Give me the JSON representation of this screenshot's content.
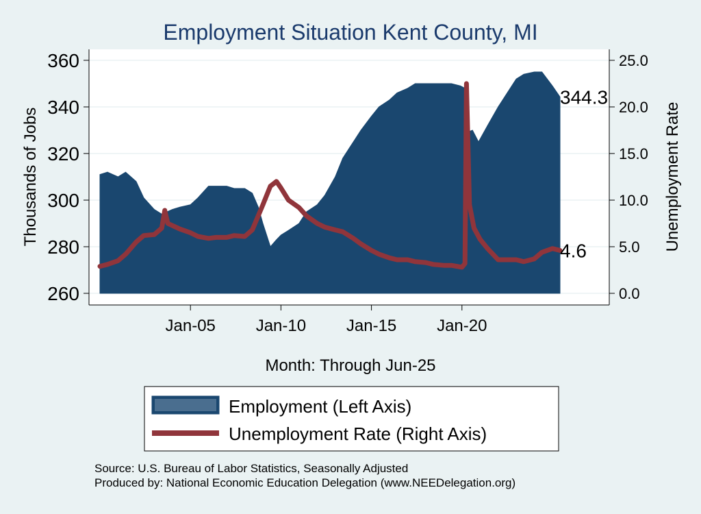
{
  "chart_data": {
    "type": "area+line",
    "title": "Employment Situation Kent  County, MI",
    "xlabel": "Month: Through Jun-25",
    "ylabel_left": "Thousands of Jobs",
    "ylabel_right": "Unemployment Rate",
    "x_range": [
      "2000-01",
      "2025-06"
    ],
    "x_ticks": [
      "Jan-05",
      "Jan-10",
      "Jan-15",
      "Jan-20"
    ],
    "y_left": {
      "min": 260,
      "max": 360,
      "ticks": [
        "260",
        "280",
        "300",
        "320",
        "340",
        "360"
      ]
    },
    "y_right": {
      "min": 0,
      "max": 25,
      "ticks": [
        "0.0",
        "5.0",
        "10.0",
        "15.0",
        "20.0",
        "25.0"
      ]
    },
    "grid": true,
    "legend_position": "bottom",
    "colors": {
      "employment": "#1a476f",
      "unemployment": "#90353b",
      "background": "#eaf2f3",
      "plot_bg": "#ffffff"
    },
    "series": [
      {
        "name": "Employment (Left Axis)",
        "axis": "left",
        "type": "area",
        "points": [
          [
            "2000-01",
            311
          ],
          [
            "2000-06",
            312
          ],
          [
            "2001-01",
            310
          ],
          [
            "2001-06",
            312
          ],
          [
            "2002-01",
            308
          ],
          [
            "2002-06",
            301
          ],
          [
            "2003-01",
            296
          ],
          [
            "2003-06",
            294
          ],
          [
            "2004-01",
            296
          ],
          [
            "2004-06",
            297
          ],
          [
            "2005-01",
            298
          ],
          [
            "2005-06",
            301
          ],
          [
            "2006-01",
            306
          ],
          [
            "2006-06",
            306
          ],
          [
            "2007-01",
            306
          ],
          [
            "2007-06",
            305
          ],
          [
            "2008-01",
            305
          ],
          [
            "2008-06",
            303
          ],
          [
            "2008-10",
            297
          ],
          [
            "2009-01",
            290
          ],
          [
            "2009-06",
            280
          ],
          [
            "2009-10",
            283
          ],
          [
            "2010-01",
            285
          ],
          [
            "2010-06",
            287
          ],
          [
            "2011-01",
            290
          ],
          [
            "2011-06",
            295
          ],
          [
            "2012-01",
            298
          ],
          [
            "2012-06",
            302
          ],
          [
            "2013-01",
            310
          ],
          [
            "2013-06",
            318
          ],
          [
            "2014-01",
            325
          ],
          [
            "2014-06",
            330
          ],
          [
            "2015-01",
            336
          ],
          [
            "2015-06",
            340
          ],
          [
            "2016-01",
            343
          ],
          [
            "2016-06",
            346
          ],
          [
            "2017-01",
            348
          ],
          [
            "2017-06",
            350
          ],
          [
            "2018-01",
            350
          ],
          [
            "2018-06",
            350
          ],
          [
            "2019-01",
            350
          ],
          [
            "2019-06",
            350
          ],
          [
            "2019-12",
            349
          ],
          [
            "2020-03",
            348
          ],
          [
            "2020-04",
            329
          ],
          [
            "2020-08",
            330
          ],
          [
            "2020-12",
            325
          ],
          [
            "2021-06",
            332
          ],
          [
            "2022-01",
            340
          ],
          [
            "2022-06",
            345
          ],
          [
            "2023-01",
            352
          ],
          [
            "2023-06",
            354
          ],
          [
            "2024-01",
            355
          ],
          [
            "2024-06",
            355
          ],
          [
            "2025-01",
            349
          ],
          [
            "2025-06",
            344.3
          ]
        ]
      },
      {
        "name": "Unemployment Rate (Right Axis)",
        "axis": "right",
        "type": "line",
        "points": [
          [
            "2000-01",
            2.9
          ],
          [
            "2000-06",
            3.1
          ],
          [
            "2001-01",
            3.5
          ],
          [
            "2001-06",
            4.2
          ],
          [
            "2002-01",
            5.5
          ],
          [
            "2002-06",
            6.2
          ],
          [
            "2003-01",
            6.3
          ],
          [
            "2003-06",
            7.0
          ],
          [
            "2003-08",
            8.9
          ],
          [
            "2003-10",
            7.5
          ],
          [
            "2004-06",
            6.9
          ],
          [
            "2005-01",
            6.5
          ],
          [
            "2005-06",
            6.1
          ],
          [
            "2006-01",
            5.9
          ],
          [
            "2006-06",
            6.0
          ],
          [
            "2007-01",
            6.0
          ],
          [
            "2007-06",
            6.2
          ],
          [
            "2008-01",
            6.1
          ],
          [
            "2008-06",
            6.8
          ],
          [
            "2009-01",
            9.5
          ],
          [
            "2009-06",
            11.5
          ],
          [
            "2009-10",
            12.0
          ],
          [
            "2010-01",
            11.3
          ],
          [
            "2010-06",
            10.0
          ],
          [
            "2011-01",
            9.2
          ],
          [
            "2011-06",
            8.3
          ],
          [
            "2012-01",
            7.5
          ],
          [
            "2012-06",
            7.1
          ],
          [
            "2013-01",
            6.8
          ],
          [
            "2013-06",
            6.6
          ],
          [
            "2014-01",
            5.9
          ],
          [
            "2014-06",
            5.3
          ],
          [
            "2015-01",
            4.6
          ],
          [
            "2015-06",
            4.2
          ],
          [
            "2016-01",
            3.8
          ],
          [
            "2016-06",
            3.6
          ],
          [
            "2017-01",
            3.6
          ],
          [
            "2017-06",
            3.4
          ],
          [
            "2018-01",
            3.3
          ],
          [
            "2018-06",
            3.1
          ],
          [
            "2019-01",
            3.0
          ],
          [
            "2019-06",
            3.0
          ],
          [
            "2020-01",
            2.8
          ],
          [
            "2020-03",
            3.2
          ],
          [
            "2020-04",
            22.5
          ],
          [
            "2020-06",
            9.5
          ],
          [
            "2020-09",
            7.0
          ],
          [
            "2021-01",
            5.8
          ],
          [
            "2021-06",
            4.8
          ],
          [
            "2022-01",
            3.6
          ],
          [
            "2022-06",
            3.6
          ],
          [
            "2023-01",
            3.6
          ],
          [
            "2023-06",
            3.4
          ],
          [
            "2024-01",
            3.7
          ],
          [
            "2024-06",
            4.4
          ],
          [
            "2025-01",
            4.8
          ],
          [
            "2025-06",
            4.6
          ]
        ]
      }
    ],
    "end_labels": {
      "employment": "344.3",
      "unemployment": "4.6"
    }
  },
  "legend": {
    "employment_label": "Employment (Left Axis)",
    "unemployment_label": "Unemployment Rate (Right Axis)"
  },
  "footer": {
    "source": "Source: U.S. Bureau of Labor Statistics, Seasonally Adjusted",
    "produced_by": "Produced by: National Economic Education Delegation (www.NEEDelegation.org)"
  }
}
